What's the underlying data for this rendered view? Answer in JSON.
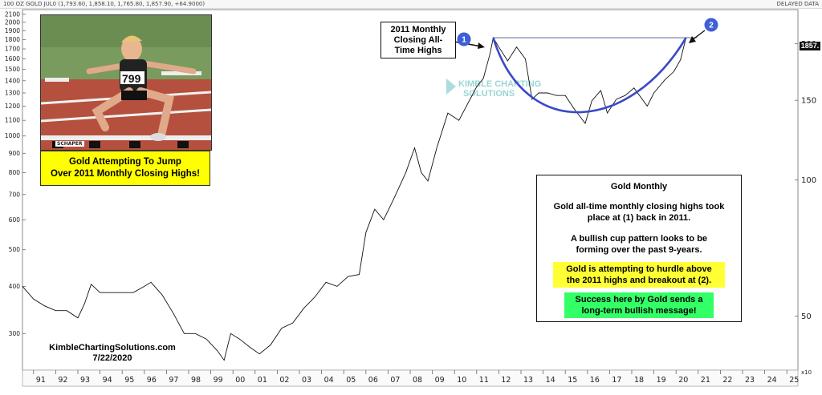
{
  "header": {
    "instrument": "100 OZ GOLD JUL0 (1,793.60, 1,858.10, 1,765.80, 1,857.90, +64.9000)",
    "data_status": "DELAYED DATA"
  },
  "photo": {
    "bib_number": "799",
    "credit_tag": "SCHAPER"
  },
  "caption": {
    "line1": "Gold Attempting To Jump",
    "line2": "Over 2011 Monthly Closing Highs!"
  },
  "callout": {
    "line1": "2011 Monthly",
    "line2": "Closing All-",
    "line3": "Time Highs"
  },
  "markers": [
    {
      "label": "1"
    },
    {
      "label": "2"
    }
  ],
  "watermark": {
    "line1": "KIMBLE CHARTING",
    "line2": "SOLUTIONS"
  },
  "info": {
    "title": "Gold Monthly",
    "p1_line1": "Gold all-time monthly closing highs took",
    "p1_line2": "place at (1) back in 2011.",
    "p2_line1": "A bullish cup pattern looks to be",
    "p2_line2": "forming over the past 9-years.",
    "yellow_line1": "Gold is attempting to hurdle above",
    "yellow_line2": "the 2011 highs and breakout at (2).",
    "green_line1": "Success here by Gold sends a",
    "green_line2": "long-term bullish message!"
  },
  "credit": {
    "site": "KimbleChartingSolutions.com",
    "date": "7/22/2020"
  },
  "last_price": "1857.",
  "multiplier": "x10",
  "colors": {
    "cup": "#3949c8",
    "marker": "#3f5fd6",
    "resistance": "#aab4cc",
    "caption_bg": "#ffff00",
    "highlight_yellow": "#ffff33",
    "highlight_green": "#33ff66",
    "watermark": "#48b3b3"
  },
  "chart_data": {
    "type": "line",
    "scale": "log",
    "left_axis_ticks": [
      300,
      400,
      500,
      600,
      700,
      800,
      900,
      1000,
      1100,
      1200,
      1300,
      1400,
      1500,
      1600,
      1700,
      1800,
      1900,
      2000,
      2100
    ],
    "right_axis_ticks": [
      50,
      100,
      150,
      200
    ],
    "x_tick_labels": [
      "91",
      "92",
      "93",
      "94",
      "95",
      "96",
      "97",
      "98",
      "99",
      "00",
      "01",
      "02",
      "03",
      "04",
      "05",
      "06",
      "07",
      "08",
      "09",
      "10",
      "11",
      "12",
      "13",
      "14",
      "15",
      "16",
      "17",
      "18",
      "19",
      "20",
      "21",
      "22",
      "23",
      "24",
      "25"
    ],
    "xlim": [
      1990.5,
      2025.5
    ],
    "ylim": [
      240,
      2160
    ],
    "resistance_level": 1820,
    "series": [
      {
        "x": [
          1990.5,
          1991.0,
          1991.5,
          1992.0,
          1992.5,
          1993.0,
          1993.3,
          1993.6,
          1994.0,
          1994.5,
          1995.0,
          1995.5,
          1996.0,
          1996.3,
          1996.8,
          1997.3,
          1997.8,
          1998.3,
          1998.8,
          1999.3,
          1999.6,
          1999.9,
          2000.3,
          2000.8,
          2001.2,
          2001.7,
          2002.2,
          2002.7,
          2003.2,
          2003.7,
          2004.2,
          2004.7,
          2005.2,
          2005.7,
          2006.0,
          2006.4,
          2006.8,
          2007.3,
          2007.8,
          2008.2,
          2008.5,
          2008.8,
          2009.2,
          2009.7,
          2010.2,
          2010.7,
          2011.0,
          2011.3,
          2011.6,
          2011.75,
          2012.0,
          2012.4,
          2012.8,
          2013.2,
          2013.5,
          2013.8,
          2014.2,
          2014.6,
          2015.0,
          2015.4,
          2015.9,
          2016.2,
          2016.6,
          2016.9,
          2017.3,
          2017.7,
          2018.1,
          2018.7,
          2019.0,
          2019.5,
          2019.9,
          2020.2,
          2020.45
        ],
        "values": [
          400,
          370,
          355,
          345,
          345,
          330,
          360,
          405,
          385,
          385,
          385,
          385,
          400,
          410,
          380,
          340,
          300,
          300,
          290,
          270,
          255,
          300,
          290,
          275,
          265,
          280,
          310,
          320,
          350,
          375,
          410,
          400,
          425,
          430,
          555,
          640,
          600,
          690,
          800,
          930,
          800,
          760,
          930,
          1150,
          1100,
          1250,
          1350,
          1420,
          1650,
          1820,
          1720,
          1580,
          1720,
          1600,
          1250,
          1300,
          1300,
          1280,
          1280,
          1180,
          1080,
          1240,
          1320,
          1150,
          1250,
          1280,
          1340,
          1200,
          1300,
          1410,
          1480,
          1590,
          1820
        ]
      }
    ]
  }
}
